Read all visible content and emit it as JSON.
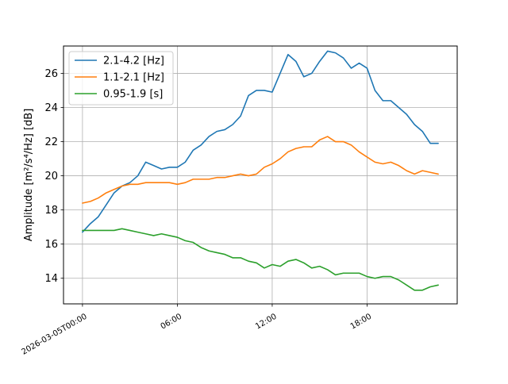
{
  "chart_data": {
    "type": "line",
    "title": "",
    "xlabel": "",
    "ylabel": "Amplitude",
    "ylabel_unit": "[m²/s⁴/Hz] [dB]",
    "x_unit": "hours since 2026-03-05T00:00",
    "xlim": [
      -1.2,
      23.7
    ],
    "ylim": [
      12.5,
      27.6
    ],
    "grid": true,
    "legend_position": "upper-left",
    "x_ticks": [
      {
        "value": 0,
        "label": "2026-03-05T00:00"
      },
      {
        "value": 6,
        "label": "06:00"
      },
      {
        "value": 12,
        "label": "12:00"
      },
      {
        "value": 18,
        "label": "18:00"
      }
    ],
    "y_ticks": [
      {
        "value": 14,
        "label": "14"
      },
      {
        "value": 16,
        "label": "16"
      },
      {
        "value": 18,
        "label": "18"
      },
      {
        "value": 20,
        "label": "20"
      },
      {
        "value": 22,
        "label": "22"
      },
      {
        "value": 24,
        "label": "24"
      },
      {
        "value": 26,
        "label": "26"
      }
    ],
    "x": [
      0,
      0.5,
      1,
      1.5,
      2,
      2.5,
      3,
      3.5,
      4,
      4.5,
      5,
      5.5,
      6,
      6.5,
      7,
      7.5,
      8,
      8.5,
      9,
      9.5,
      10,
      10.5,
      11,
      11.5,
      12,
      12.5,
      13,
      13.5,
      14,
      14.5,
      15,
      15.5,
      16,
      16.5,
      17,
      17.5,
      18,
      18.5,
      19,
      19.5,
      20,
      20.5,
      21,
      21.5,
      22,
      22.5
    ],
    "series": [
      {
        "name": "2.1-4.2 [Hz]",
        "color": "#1f77b4",
        "values": [
          16.7,
          17.2,
          17.6,
          18.3,
          19.0,
          19.4,
          19.6,
          20.0,
          20.8,
          20.6,
          20.4,
          20.5,
          20.5,
          20.8,
          21.5,
          21.8,
          22.3,
          22.6,
          22.7,
          23.0,
          23.5,
          24.7,
          25.0,
          25.0,
          24.9,
          26.0,
          27.1,
          26.7,
          25.8,
          26.0,
          26.7,
          27.3,
          27.2,
          26.9,
          26.3,
          26.6,
          26.3,
          25.0,
          24.4,
          24.4,
          24.0,
          23.6,
          23.0,
          22.6,
          21.9,
          21.9
        ]
      },
      {
        "name": "1.1-2.1 [Hz]",
        "color": "#ff7f0e",
        "values": [
          18.4,
          18.5,
          18.7,
          19.0,
          19.2,
          19.4,
          19.5,
          19.5,
          19.6,
          19.6,
          19.6,
          19.6,
          19.5,
          19.6,
          19.8,
          19.8,
          19.8,
          19.9,
          19.9,
          20.0,
          20.1,
          20.0,
          20.1,
          20.5,
          20.7,
          21.0,
          21.4,
          21.6,
          21.7,
          21.7,
          22.1,
          22.3,
          22.0,
          22.0,
          21.8,
          21.4,
          21.1,
          20.8,
          20.7,
          20.8,
          20.6,
          20.3,
          20.1,
          20.3,
          20.2,
          20.1
        ]
      },
      {
        "name": "0.95-1.9 [s]",
        "color": "#2ca02c",
        "values": [
          16.8,
          16.8,
          16.8,
          16.8,
          16.8,
          16.9,
          16.8,
          16.7,
          16.6,
          16.5,
          16.6,
          16.5,
          16.4,
          16.2,
          16.1,
          15.8,
          15.6,
          15.5,
          15.4,
          15.2,
          15.2,
          15.0,
          14.9,
          14.6,
          14.8,
          14.7,
          15.0,
          15.1,
          14.9,
          14.6,
          14.7,
          14.5,
          14.2,
          14.3,
          14.3,
          14.3,
          14.1,
          14.0,
          14.1,
          14.1,
          13.9,
          13.6,
          13.3,
          13.3,
          13.5,
          13.6
        ]
      }
    ]
  }
}
